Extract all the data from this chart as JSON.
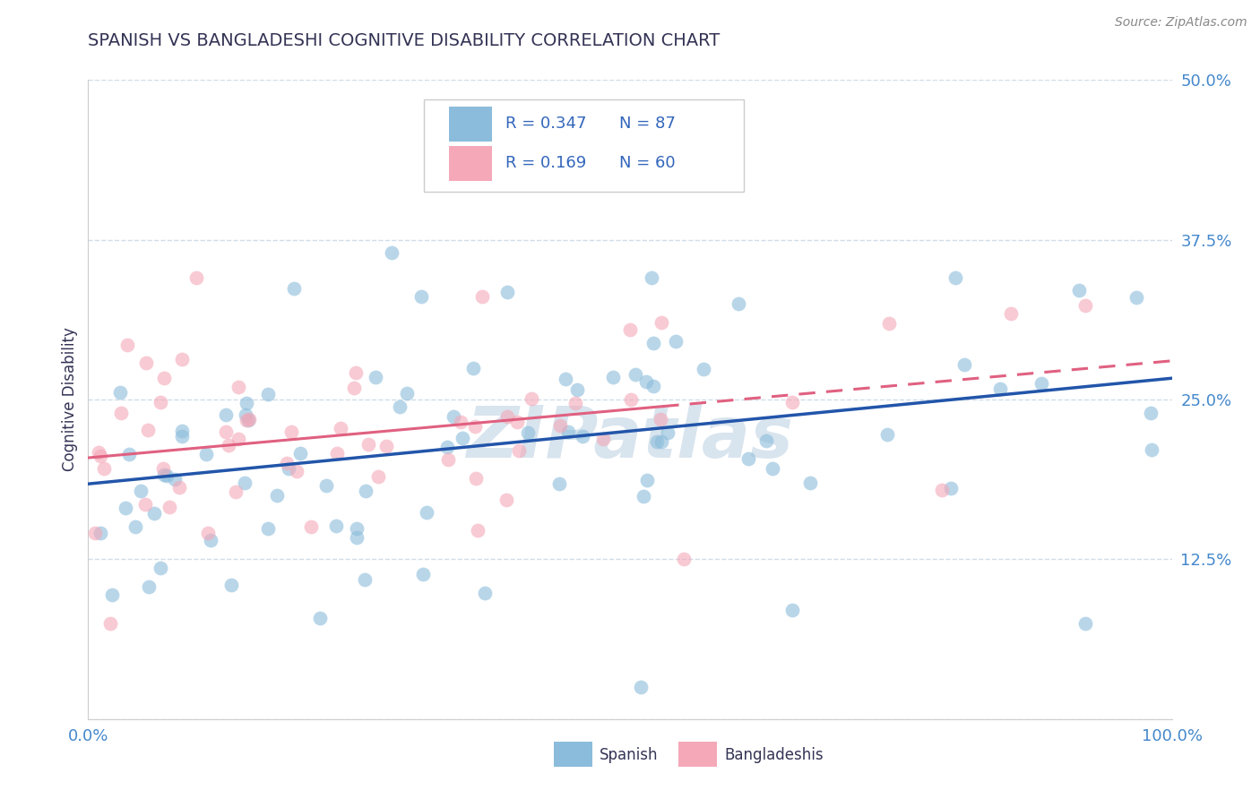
{
  "title": "SPANISH VS BANGLADESHI COGNITIVE DISABILITY CORRELATION CHART",
  "source": "Source: ZipAtlas.com",
  "ylabel": "Cognitive Disability",
  "xlim": [
    0.0,
    1.0
  ],
  "ylim": [
    0.0,
    0.5
  ],
  "yticks": [
    0.0,
    0.125,
    0.25,
    0.375,
    0.5
  ],
  "ytick_labels": [
    "",
    "12.5%",
    "25.0%",
    "37.5%",
    "50.0%"
  ],
  "xticks": [
    0.0,
    0.25,
    0.5,
    0.75,
    1.0
  ],
  "xtick_labels": [
    "0.0%",
    "",
    "",
    "",
    "100.0%"
  ],
  "spanish_color": "#8BBCDB",
  "bangladeshi_color": "#F4A8B8",
  "spanish_R": 0.347,
  "spanish_N": 87,
  "bangladeshi_R": 0.169,
  "bangladeshi_N": 60,
  "title_color": "#333355",
  "axis_label_color": "#333355",
  "tick_color": "#4488CC",
  "grid_color": "#D0DDE8",
  "background_color": "#ffffff",
  "watermark": "ZIPatlas",
  "watermark_color": "#D8E4EE",
  "line_blue": "#2255AA",
  "line_pink": "#E06080"
}
